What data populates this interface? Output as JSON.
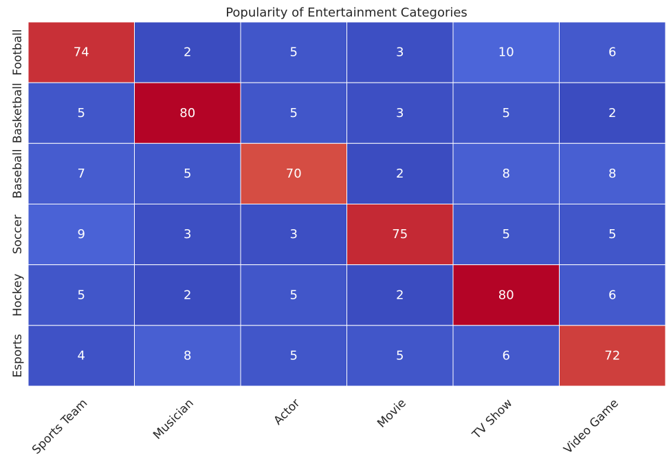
{
  "chart_data": {
    "type": "heatmap",
    "title": "Popularity of Entertainment Categories",
    "xlabel": "",
    "ylabel": "",
    "x_categories": [
      "Sports Team",
      "Musician",
      "Actor",
      "Movie",
      "TV Show",
      "Video Game"
    ],
    "y_categories": [
      "Football",
      "Basketball",
      "Baseball",
      "Soccer",
      "Hockey",
      "Esports"
    ],
    "values": [
      [
        74,
        2,
        5,
        3,
        10,
        6
      ],
      [
        5,
        80,
        5,
        3,
        5,
        2
      ],
      [
        7,
        5,
        70,
        2,
        8,
        8
      ],
      [
        9,
        3,
        3,
        75,
        5,
        5
      ],
      [
        5,
        2,
        5,
        2,
        80,
        6
      ],
      [
        4,
        8,
        5,
        5,
        6,
        72
      ]
    ],
    "colormap": "coolwarm",
    "value_range": [
      2,
      80
    ],
    "annotations": true,
    "grid_line_color": "#ffffff",
    "annotation_color": "#ffffff",
    "colorbar": false
  }
}
